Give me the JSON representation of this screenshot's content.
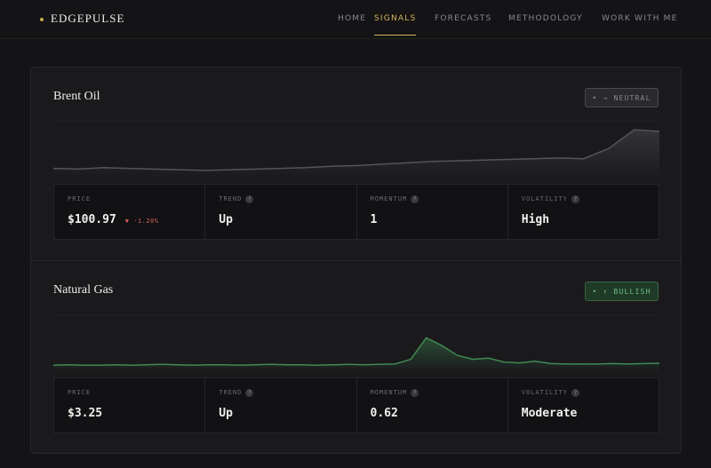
{
  "nav": {
    "logo": "EDGEPULSE",
    "items": [
      "HOME",
      "SIGNALS",
      "FORECASTS",
      "METHODOLOGY",
      "WORK WITH ME"
    ],
    "active": 1
  },
  "signals": [
    {
      "name": "Brent Oil",
      "badge": "• → NEUTRAL",
      "badge_color": "#8a8a8e",
      "badge_bg": "#2a292d",
      "spark": {
        "color": "#55545a",
        "ylim": [
          94,
          102.5
        ],
        "values": [
          95.6,
          95.5,
          95.7,
          95.6,
          95.5,
          95.4,
          95.3,
          95.4,
          95.5,
          95.6,
          95.7,
          95.9,
          96.0,
          96.2,
          96.4,
          96.6,
          96.7,
          96.8,
          96.9,
          97.0,
          97.1,
          97.0,
          98.5,
          101.2,
          100.97
        ]
      },
      "stats": [
        {
          "label": "PRICE",
          "value": "$100.97",
          "change": "▼ -1.20%"
        },
        {
          "label": "TREND",
          "help": "?",
          "value": "Up"
        },
        {
          "label": "MOMENTUM",
          "help": "?",
          "value": "1"
        },
        {
          "label": "VOLATILITY",
          "help": "?",
          "value": "High"
        }
      ]
    },
    {
      "name": "Natural Gas",
      "badge": "• ↑ BULLISH",
      "badge_color": "#6fbf7e",
      "badge_bg": "#1f3a27",
      "spark": {
        "color": "#3f8a52",
        "ylim": [
          3.0,
          4.5
        ],
        "values": [
          3.2,
          3.21,
          3.2,
          3.2,
          3.21,
          3.2,
          3.21,
          3.22,
          3.21,
          3.2,
          3.21,
          3.21,
          3.2,
          3.21,
          3.22,
          3.21,
          3.21,
          3.2,
          3.21,
          3.22,
          3.21,
          3.22,
          3.23,
          3.35,
          3.9,
          3.7,
          3.45,
          3.35,
          3.38,
          3.28,
          3.26,
          3.3,
          3.24,
          3.23,
          3.23,
          3.23,
          3.24,
          3.23,
          3.24,
          3.25
        ]
      },
      "stats": [
        {
          "label": "PRICE",
          "value": "$3.25"
        },
        {
          "label": "TREND",
          "help": "?",
          "value": "Up"
        },
        {
          "label": "MOMENTUM",
          "help": "?",
          "value": "0.62"
        },
        {
          "label": "VOLATILITY",
          "help": "?",
          "value": "Moderate"
        }
      ]
    }
  ]
}
